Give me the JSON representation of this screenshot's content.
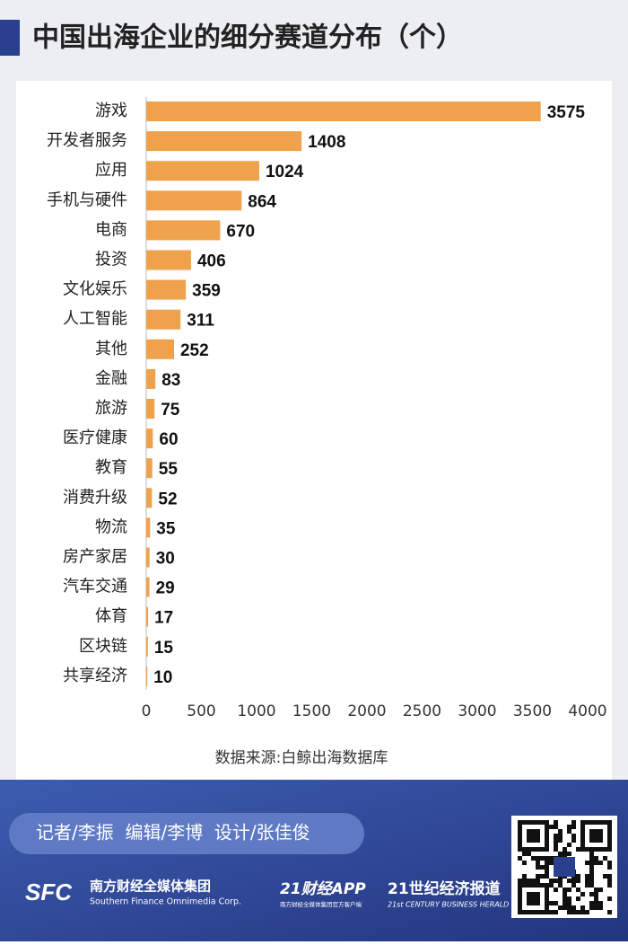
{
  "chart_data": {
    "type": "bar",
    "orientation": "horizontal",
    "title": "中国出海企业的细分赛道分布（个）",
    "categories": [
      "游戏",
      "开发者服务",
      "应用",
      "手机与硬件",
      "电商",
      "投资",
      "文化娱乐",
      "人工智能",
      "其他",
      "金融",
      "旅游",
      "医疗健康",
      "教育",
      "消费升级",
      "物流",
      "房产家居",
      "汽车交通",
      "体育",
      "区块链",
      "共享经济"
    ],
    "values": [
      3575,
      1408,
      1024,
      864,
      670,
      406,
      359,
      311,
      252,
      83,
      75,
      60,
      55,
      52,
      35,
      30,
      29,
      17,
      15,
      10
    ],
    "color": "#f0a14c",
    "xlim": [
      0,
      4000
    ],
    "xticks": [
      0,
      500,
      1000,
      1500,
      2000,
      2500,
      3000,
      3500,
      4000
    ],
    "grid": false,
    "source": "数据来源:白鲸出海数据库"
  },
  "footer": {
    "credits": "记者/李振  编辑/李博  设计/张佳俊",
    "brand1": "南方财经全媒体集团",
    "brand1_en": "Southern Finance Omnimedia Corp.",
    "brand2": "21财经APP",
    "brand2_sub": "南方财经全媒体集团官方客户端",
    "brand3": "21世纪经济报道",
    "brand3_en": "21st CENTURY BUSINESS HERALD"
  }
}
